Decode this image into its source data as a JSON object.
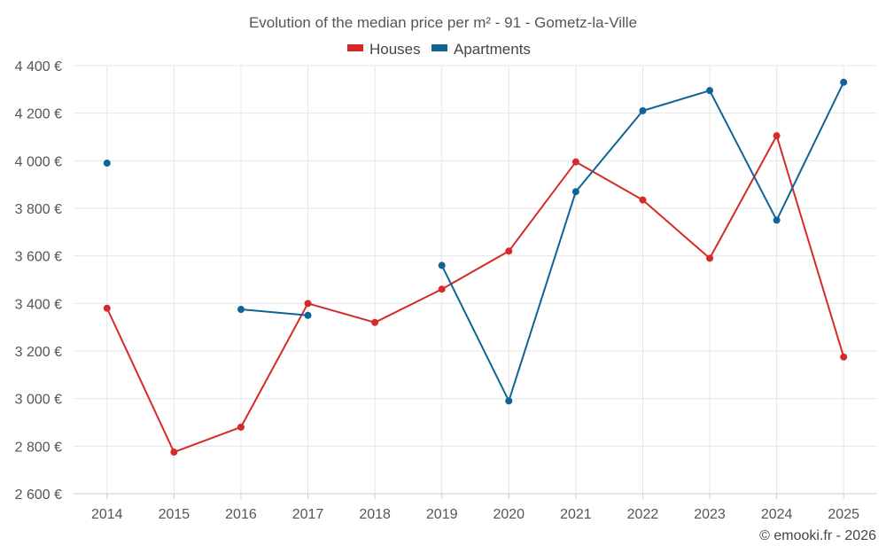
{
  "chart_data": {
    "type": "line",
    "title": "Evolution of the median price per m² - 91 - Gometz-la-Ville",
    "xlabel": "",
    "ylabel": "",
    "categories": [
      "2014",
      "2015",
      "2016",
      "2017",
      "2018",
      "2019",
      "2020",
      "2021",
      "2022",
      "2023",
      "2024",
      "2025"
    ],
    "ylim": [
      2600,
      4400
    ],
    "yticks": [
      2600,
      2800,
      3000,
      3200,
      3400,
      3600,
      3800,
      4000,
      4200,
      4400
    ],
    "ytick_labels": [
      "2 600 €",
      "2 800 €",
      "3 000 €",
      "3 200 €",
      "3 400 €",
      "3 600 €",
      "3 800 €",
      "4 000 €",
      "4 200 €",
      "4 400 €"
    ],
    "grid": true,
    "legend_position": "top-center",
    "series": [
      {
        "name": "Houses",
        "color": "#d62a2a",
        "values": [
          3380,
          2775,
          2880,
          3400,
          3320,
          3460,
          3620,
          3995,
          3835,
          3590,
          4105,
          3175
        ]
      },
      {
        "name": "Apartments",
        "color": "#0f6496",
        "values": [
          3990,
          null,
          3375,
          3350,
          null,
          3560,
          2990,
          3870,
          4210,
          4295,
          3750,
          4330
        ]
      }
    ],
    "credit": "© emooki.fr - 2026"
  }
}
